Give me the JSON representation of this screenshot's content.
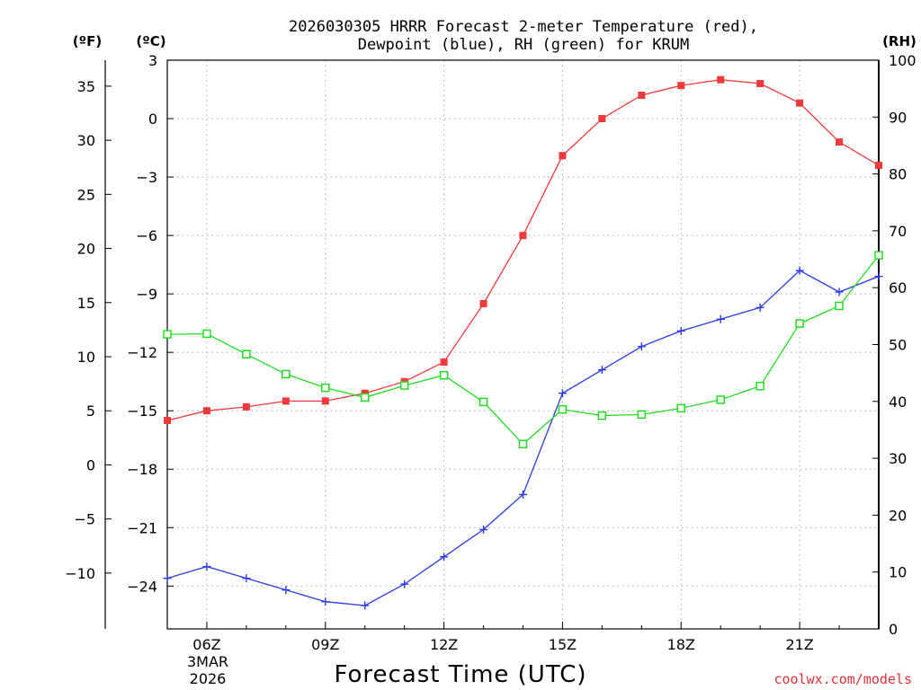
{
  "chart_data": {
    "type": "line",
    "title_lines": [
      "2026030305 HRRR Forecast 2-meter Temperature (red),",
      "Dewpoint (blue), RH (green) for KRUM"
    ],
    "xlabel": "Forecast Time (UTC)",
    "credit": "coolwx.com/models",
    "date_labels": [
      "3MAR",
      "2026"
    ],
    "x_hours": [
      5,
      6,
      7,
      8,
      9,
      10,
      11,
      12,
      13,
      14,
      15,
      16,
      17,
      18,
      19,
      20,
      21,
      22,
      23
    ],
    "x_range": [
      5,
      23
    ],
    "x_ticks": [
      {
        "hour": 6,
        "label": "06Z"
      },
      {
        "hour": 9,
        "label": "09Z"
      },
      {
        "hour": 12,
        "label": "12Z"
      },
      {
        "hour": 15,
        "label": "15Z"
      },
      {
        "hour": 18,
        "label": "18Z"
      },
      {
        "hour": 21,
        "label": "21Z"
      }
    ],
    "axes": {
      "celsius": {
        "unit_label": "(ºC)",
        "range": [
          -26.2,
          3
        ],
        "ticks": [
          3,
          0,
          -3,
          -6,
          -9,
          -12,
          -15,
          -18,
          -21,
          -24
        ],
        "tick_labels": [
          "3",
          "0",
          "−3",
          "−6",
          "−9",
          "−12",
          "−15",
          "−18",
          "−21",
          "−24"
        ]
      },
      "fahrenheit": {
        "unit_label": "(ºF)",
        "ticks": [
          35,
          30,
          25,
          20,
          15,
          10,
          5,
          0,
          -5,
          -10
        ],
        "tick_labels": [
          "35",
          "30",
          "25",
          "20",
          "15",
          "10",
          "5",
          "0",
          "−5",
          "−10"
        ]
      },
      "rh": {
        "unit_label": "(RH)",
        "range": [
          0,
          100
        ],
        "ticks": [
          100,
          90,
          80,
          70,
          60,
          50,
          40,
          30,
          20,
          10,
          0
        ],
        "tick_labels": [
          "100",
          "90",
          "80",
          "70",
          "60",
          "50",
          "40",
          "30",
          "20",
          "10",
          "0"
        ]
      }
    },
    "series": [
      {
        "name": "2-meter Temperature",
        "axis": "celsius",
        "color": "#ee3a3a",
        "marker": "filled-square",
        "values": [
          -15.5,
          -15.0,
          -14.8,
          -14.5,
          -14.5,
          -14.1,
          -13.5,
          -12.5,
          -9.5,
          -6.0,
          -1.9,
          0.0,
          1.2,
          1.7,
          2.0,
          1.8,
          0.8,
          -1.2,
          -2.4
        ]
      },
      {
        "name": "Dewpoint",
        "axis": "celsius",
        "color": "#2a3be0",
        "marker": "plus",
        "values": [
          -23.6,
          -23.0,
          -23.6,
          -24.2,
          -24.8,
          -25.0,
          -23.9,
          -22.5,
          -21.1,
          -19.3,
          -14.1,
          -12.9,
          -11.7,
          -10.9,
          -10.3,
          -9.7,
          -7.8,
          -8.9,
          -8.1
        ]
      },
      {
        "name": "RH",
        "axis": "rh",
        "color": "#22dd22",
        "marker": "open-square",
        "values": [
          51.8,
          51.9,
          48.3,
          44.8,
          42.4,
          40.7,
          42.8,
          44.6,
          39.9,
          32.5,
          38.6,
          37.5,
          37.7,
          38.8,
          40.3,
          42.7,
          53.7,
          56.8,
          65.7
        ]
      }
    ]
  }
}
